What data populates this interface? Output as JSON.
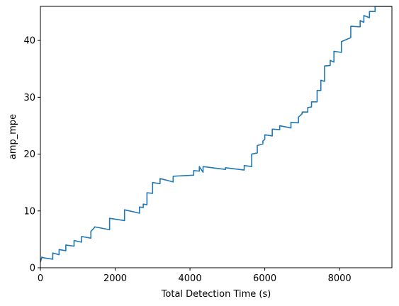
{
  "chart_data": {
    "type": "line",
    "title": "",
    "xlabel": "Total Detection Time (s)",
    "ylabel": "amp_mpe",
    "xlim": [
      0,
      9400
    ],
    "ylim": [
      0,
      46
    ],
    "xticks": [
      0,
      2000,
      4000,
      6000,
      8000
    ],
    "yticks": [
      0,
      10,
      20,
      30,
      40
    ],
    "grid": false,
    "legend": "none",
    "series": [
      {
        "color": "#1f77b4",
        "x": [
          0,
          40,
          40,
          330,
          330,
          500,
          500,
          680,
          680,
          900,
          900,
          1100,
          1100,
          1350,
          1350,
          1450,
          1450,
          1850,
          1850,
          2250,
          2250,
          2650,
          2650,
          2750,
          2750,
          2850,
          2850,
          3000,
          3000,
          3200,
          3200,
          3550,
          3550,
          4100,
          4100,
          4250,
          4250,
          4350,
          4350,
          4950,
          4950,
          5450,
          5450,
          5650,
          5650,
          5800,
          5800,
          5950,
          5950,
          6000,
          6000,
          6200,
          6200,
          6400,
          6400,
          6700,
          6700,
          6900,
          6900,
          7000,
          7000,
          7150,
          7150,
          7250,
          7250,
          7400,
          7400,
          7500,
          7500,
          7600,
          7600,
          7750,
          7750,
          7850,
          7850,
          8050,
          8050,
          8300,
          8300,
          8550,
          8550,
          8650,
          8650,
          8800,
          8800,
          8950,
          8950,
          9100,
          9100,
          9300,
          9300,
          9400
        ],
        "y": [
          1.0,
          1.9,
          1.8,
          1.5,
          2.6,
          2.3,
          3.2,
          3.0,
          4.0,
          3.8,
          4.8,
          4.5,
          5.5,
          5.2,
          6.4,
          7.1,
          7.2,
          6.7,
          8.7,
          8.3,
          10.2,
          9.6,
          10.7,
          10.6,
          11.2,
          11.1,
          13.2,
          13.1,
          15.0,
          14.8,
          15.7,
          15.1,
          16.1,
          16.3,
          17.1,
          17.0,
          17.8,
          16.8,
          17.8,
          17.3,
          17.6,
          17.2,
          18.0,
          17.8,
          20.0,
          20.2,
          21.5,
          21.8,
          22.3,
          22.6,
          23.4,
          23.2,
          24.4,
          24.3,
          25.0,
          24.6,
          25.6,
          25.5,
          26.5,
          27.1,
          27.4,
          27.4,
          28.2,
          28.3,
          29.2,
          29.2,
          31.2,
          31.2,
          33.0,
          32.8,
          35.5,
          35.6,
          36.5,
          36.2,
          38.1,
          37.9,
          39.8,
          40.5,
          42.5,
          42.4,
          43.5,
          43.2,
          44.4,
          44.0,
          45.1,
          45.1,
          46.0,
          46.0,
          46.0,
          46.0,
          46.0,
          46.0
        ]
      }
    ]
  }
}
